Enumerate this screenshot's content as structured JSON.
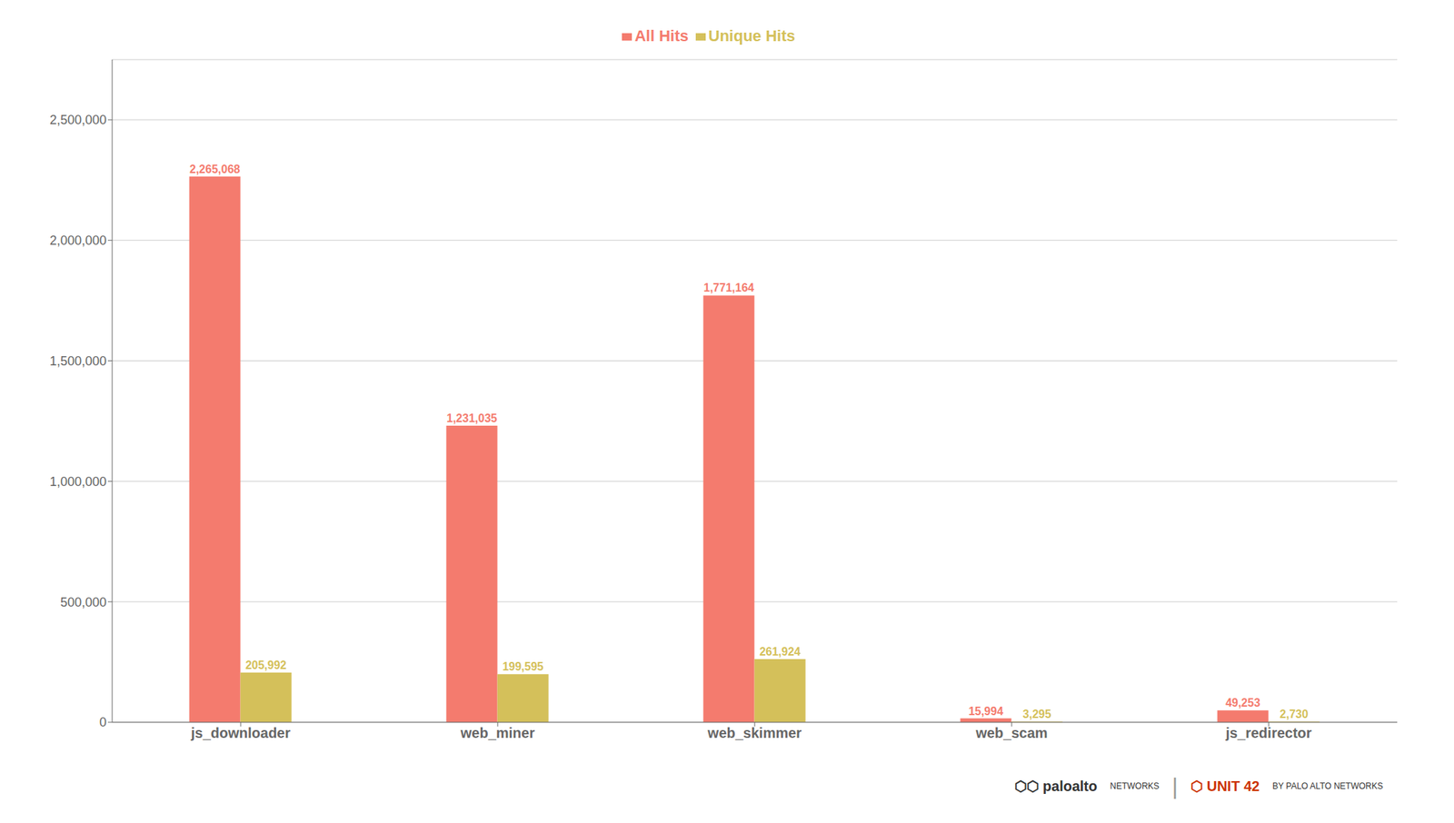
{
  "chart_data": {
    "type": "bar",
    "categories": [
      "js_downloader",
      "web_miner",
      "web_skimmer",
      "web_scam",
      "js_redirector"
    ],
    "series": [
      {
        "name": "All Hits",
        "color": "#F47B6E",
        "values": [
          2265068,
          1231035,
          1771164,
          15994,
          49253
        ],
        "value_labels": [
          "2,265,068",
          "1,231,035",
          "1,771,164",
          "15,994",
          "49,253"
        ]
      },
      {
        "name": "Unique Hits",
        "color": "#D4C05A",
        "values": [
          205992,
          199595,
          261924,
          3295,
          2730
        ],
        "value_labels": [
          "205,992",
          "199,595",
          "261,924",
          "3,295",
          "2,730"
        ]
      }
    ],
    "ylim": [
      0,
      2750000
    ],
    "yticks": [
      0,
      {
        "value": 500000,
        "label": "500,000"
      },
      {
        "value": 1000000,
        "label": "1,000,000"
      },
      {
        "value": 1500000,
        "label": "1,500,000"
      },
      {
        "value": 2000000,
        "label": "2,000,000"
      },
      {
        "value": 2500000,
        "label": "2,500,000"
      }
    ],
    "grid": true,
    "legend": "top",
    "data_labels": true,
    "annotations": [
      "⬡⬡ paloalto",
      "NETWORKS",
      "|",
      "⬡ UNIT 42",
      "BY PALO ALTO NETWORKS"
    ]
  }
}
